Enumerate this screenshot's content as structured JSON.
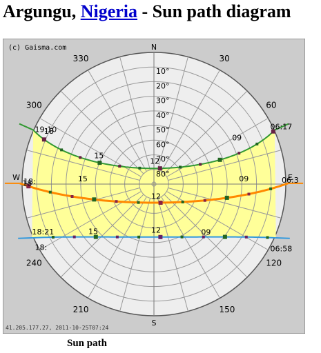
{
  "title": {
    "place": "Argungu,",
    "country": "Nigeria",
    "suffix": "- Sun path diagram"
  },
  "caption": "Sun path",
  "diagram": {
    "copyright": "(c) Gaisma.com",
    "footer": "41.205.177.27, 2011-10-25T07:24",
    "compass": {
      "n": "N",
      "s": "S",
      "e": "E",
      "w": "W"
    },
    "azimuth_labels": [
      {
        "az": 330,
        "text": "330"
      },
      {
        "az": 30,
        "text": "30"
      },
      {
        "az": 300,
        "text": "300"
      },
      {
        "az": 60,
        "text": "60"
      },
      {
        "az": 240,
        "text": "240"
      },
      {
        "az": 120,
        "text": "120"
      },
      {
        "az": 210,
        "text": "210"
      },
      {
        "az": 150,
        "text": "150"
      }
    ],
    "altitude_labels": [
      "10°",
      "20°",
      "30°",
      "40°",
      "50°",
      "60°",
      "70°",
      "80°"
    ],
    "colors": {
      "background": "#cccccc",
      "sky": "#eeeeee",
      "grid": "#999999",
      "day_band": "#ffff99",
      "summer_path": "#339933",
      "equinox_path": "#ff8800",
      "winter_path": "#3399dd"
    },
    "paths": [
      {
        "name": "summer",
        "sunrise": {
          "az": 66,
          "text": "06:17"
        },
        "sunset": {
          "az": 294,
          "text": "19:10"
        },
        "hour_labels": [
          {
            "az": 63,
            "alt": 28,
            "text": "09"
          },
          {
            "az": 356,
            "alt": 78,
            "text": "12"
          },
          {
            "az": 292,
            "alt": 48,
            "text": "15"
          },
          {
            "az": 294,
            "alt": 10,
            "text": "18"
          }
        ]
      },
      {
        "name": "equinox",
        "sunrise": {
          "az": 90,
          "text": "06:3"
        },
        "sunset": {
          "az": 270,
          "text": "18:"
        },
        "hour_labels": [
          {
            "az": 90,
            "alt": 30,
            "text": "09"
          },
          {
            "az": 180,
            "alt": 78,
            "text": "12"
          },
          {
            "az": 270,
            "alt": 40,
            "text": "15"
          },
          {
            "az": 268,
            "alt": 2,
            "text": "18"
          }
        ]
      },
      {
        "name": "winter",
        "sunrise": {
          "az": 114,
          "text": "06:58"
        },
        "sunset": {
          "az": 246,
          "text": "18:"
        },
        "hour_labels": [
          {
            "az": 137,
            "alt": 40,
            "text": "09"
          },
          {
            "az": 180,
            "alt": 55,
            "text": "12"
          },
          {
            "az": 230,
            "alt": 34,
            "text": "15"
          },
          {
            "az": 246,
            "alt": 1,
            "text": "18:21"
          }
        ]
      }
    ]
  }
}
